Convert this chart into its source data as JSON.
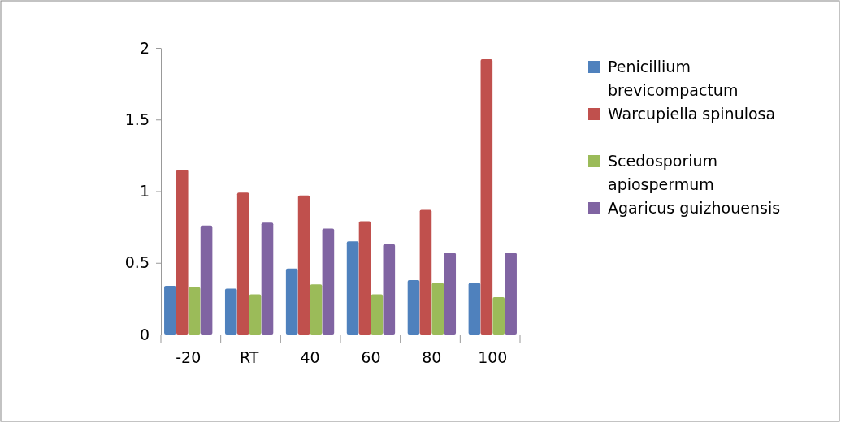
{
  "chart_data": {
    "type": "bar",
    "categories": [
      "-20",
      "RT",
      "40",
      "60",
      "80",
      "100"
    ],
    "series": [
      {
        "name": "Penicillium brevicompactum",
        "color": "#4f81bd",
        "values": [
          0.34,
          0.32,
          0.46,
          0.65,
          0.38,
          0.36
        ]
      },
      {
        "name": "Warcupiella spinulosa",
        "color": "#c0504d",
        "values": [
          1.15,
          0.99,
          0.97,
          0.79,
          0.87,
          1.92
        ]
      },
      {
        "name": "Scedosporium apiospermum",
        "color": "#9bbb59",
        "values": [
          0.33,
          0.28,
          0.35,
          0.28,
          0.36,
          0.26
        ]
      },
      {
        "name": "Agaricus guizhouensis",
        "color": "#8064a2",
        "values": [
          0.76,
          0.78,
          0.74,
          0.63,
          0.57,
          0.57
        ]
      }
    ],
    "ylim": [
      0,
      2
    ],
    "yticks": [
      0,
      0.5,
      1,
      1.5,
      2
    ],
    "legend": "right"
  }
}
